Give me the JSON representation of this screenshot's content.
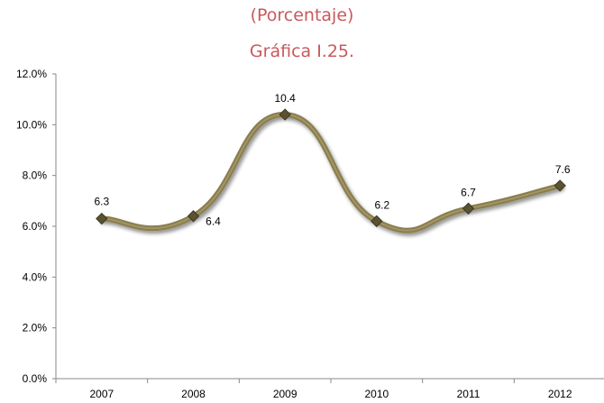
{
  "chart_data": {
    "type": "line",
    "title": "Gráfica I.25.",
    "subtitle": "(Porcentaje)",
    "categories": [
      "2007",
      "2008",
      "2009",
      "2010",
      "2011",
      "2012"
    ],
    "series": [
      {
        "values": [
          6.3,
          6.4,
          10.4,
          6.2,
          6.7,
          7.6
        ],
        "labels": [
          "6.3",
          "6.4",
          "10.4",
          "6.2",
          "6.7",
          "7.6"
        ]
      }
    ],
    "y_ticks": [
      "0.0%",
      "2.0%",
      "4.0%",
      "6.0%",
      "8.0%",
      "10.0%",
      "12.0%"
    ],
    "ylim": [
      0,
      12
    ],
    "grid": false,
    "legend": "none",
    "colors": {
      "line": "#8a7d4e",
      "marker": "#5a5230",
      "title": "#c9595c"
    }
  }
}
